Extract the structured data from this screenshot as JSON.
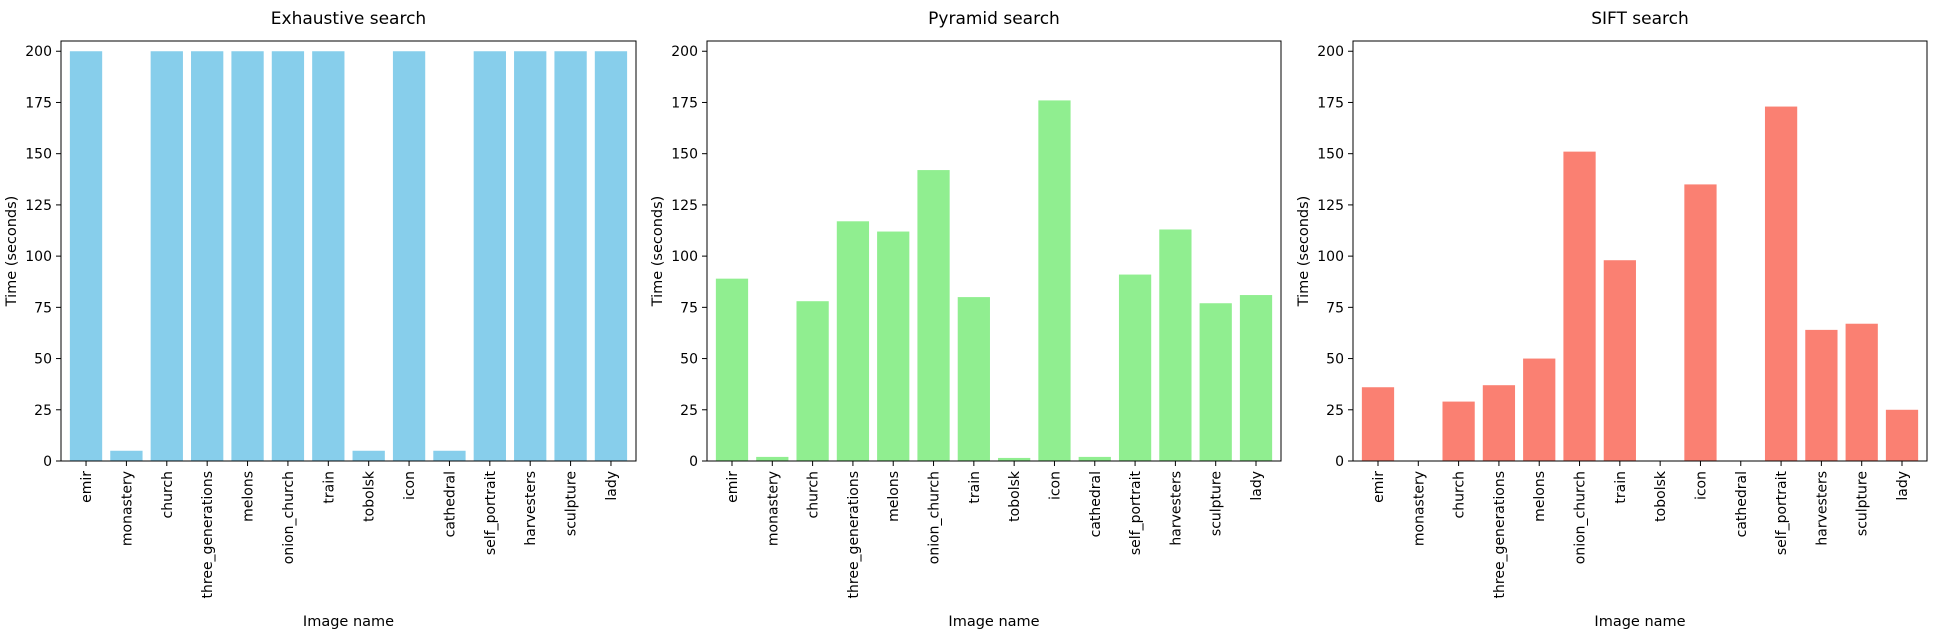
{
  "chart_data": [
    {
      "type": "bar",
      "title": "Exhaustive search",
      "xlabel": "Image name",
      "ylabel": "Time (seconds)",
      "ylim": [
        0,
        205
      ],
      "yticks": [
        0,
        25,
        50,
        75,
        100,
        125,
        150,
        175,
        200
      ],
      "grid": false,
      "categories": [
        "emir",
        "monastery",
        "church",
        "three_generations",
        "melons",
        "onion_church",
        "train",
        "tobolsk",
        "icon",
        "cathedral",
        "self_portrait",
        "harvesters",
        "sculpture",
        "lady"
      ],
      "values": [
        200,
        5,
        200,
        200,
        200,
        200,
        200,
        5,
        200,
        5,
        200,
        200,
        200,
        200
      ],
      "color": "#87ceeb"
    },
    {
      "type": "bar",
      "title": "Pyramid search",
      "xlabel": "Image name",
      "ylabel": "Time (seconds)",
      "ylim": [
        0,
        205
      ],
      "yticks": [
        0,
        25,
        50,
        75,
        100,
        125,
        150,
        175,
        200
      ],
      "grid": false,
      "categories": [
        "emir",
        "monastery",
        "church",
        "three_generations",
        "melons",
        "onion_church",
        "train",
        "tobolsk",
        "icon",
        "cathedral",
        "self_portrait",
        "harvesters",
        "sculpture",
        "lady"
      ],
      "values": [
        89,
        2,
        78,
        117,
        112,
        142,
        80,
        1.5,
        176,
        2,
        91,
        113,
        77,
        81
      ],
      "color": "#90ee90"
    },
    {
      "type": "bar",
      "title": "SIFT search",
      "xlabel": "Image name",
      "ylabel": "Time (seconds)",
      "ylim": [
        0,
        205
      ],
      "yticks": [
        0,
        25,
        50,
        75,
        100,
        125,
        150,
        175,
        200
      ],
      "grid": false,
      "categories": [
        "emir",
        "monastery",
        "church",
        "three_generations",
        "melons",
        "onion_church",
        "train",
        "tobolsk",
        "icon",
        "cathedral",
        "self_portrait",
        "harvesters",
        "sculpture",
        "lady"
      ],
      "values": [
        36,
        0,
        29,
        37,
        50,
        151,
        98,
        0,
        135,
        0,
        173,
        64,
        67,
        25
      ],
      "color": "#fa8072"
    }
  ]
}
